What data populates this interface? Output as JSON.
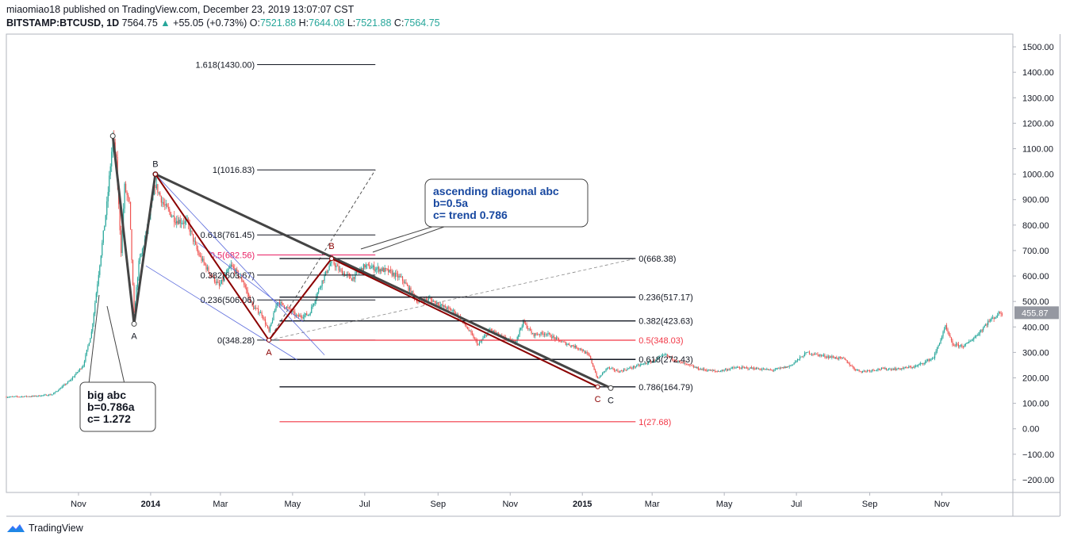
{
  "header": {
    "publisher": "miaomiao18 published on TradingView.com, December 23, 2019 13:07:07 CST",
    "symbol": "BITSTAMP:BTCUSD, 1D",
    "last": "7564.75",
    "arrow": "▲",
    "change": "+55.05 (+0.73%)",
    "o_label": "O:",
    "o": "7521.88",
    "h_label": "H:",
    "h": "7644.08",
    "l_label": "L:",
    "l": "7521.88",
    "c_label": "C:",
    "c": "7564.75"
  },
  "footer": {
    "brand": "TradingView"
  },
  "colors": {
    "up": "#26a69a",
    "down": "#ef5350",
    "wave_red": "#8b0000",
    "trend": "#444444",
    "fib_black": "#131722",
    "fib_red": "#f23645",
    "fib_pink": "#e91e63",
    "channel": "#5b6bdc",
    "price_badge": "#9598a1"
  },
  "chart_data": {
    "type": "candlestick",
    "ylim": [
      -250,
      1550
    ],
    "yticks": [
      "1500.00",
      "1400.00",
      "1300.00",
      "1200.00",
      "1100.00",
      "1000.00",
      "900.00",
      "800.00",
      "700.00",
      "600.00",
      "500.00",
      "400.00",
      "300.00",
      "200.00",
      "100.00",
      "0.00",
      "−100.00",
      "−200.00"
    ],
    "ytick_values": [
      1500,
      1400,
      1300,
      1200,
      1100,
      1000,
      900,
      800,
      700,
      600,
      500,
      400,
      300,
      200,
      100,
      0,
      -100,
      -200
    ],
    "xticks": [
      {
        "label": "Nov",
        "date": "2013-11-01",
        "bold": false
      },
      {
        "label": "2014",
        "date": "2014-01-01",
        "bold": true
      },
      {
        "label": "Mar",
        "date": "2014-03-01",
        "bold": false
      },
      {
        "label": "May",
        "date": "2014-05-01",
        "bold": false
      },
      {
        "label": "Jul",
        "date": "2014-07-01",
        "bold": false
      },
      {
        "label": "Sep",
        "date": "2014-09-01",
        "bold": false
      },
      {
        "label": "Nov",
        "date": "2014-11-01",
        "bold": false
      },
      {
        "label": "2015",
        "date": "2015-01-01",
        "bold": true
      },
      {
        "label": "Mar",
        "date": "2015-03-01",
        "bold": false
      },
      {
        "label": "May",
        "date": "2015-05-01",
        "bold": false
      },
      {
        "label": "Jul",
        "date": "2015-07-01",
        "bold": false
      },
      {
        "label": "Sep",
        "date": "2015-09-01",
        "bold": false
      },
      {
        "label": "Nov",
        "date": "2015-11-01",
        "bold": false
      }
    ],
    "last_price_badge": "455.87",
    "last_price_value": 455.87,
    "price_path": [
      [
        "2013-09-01",
        125
      ],
      [
        "2013-09-25",
        128
      ],
      [
        "2013-10-10",
        135
      ],
      [
        "2013-10-25",
        190
      ],
      [
        "2013-11-05",
        250
      ],
      [
        "2013-11-12",
        380
      ],
      [
        "2013-11-19",
        650
      ],
      [
        "2013-11-25",
        880
      ],
      [
        "2013-11-30",
        1140
      ],
      [
        "2013-12-03",
        1050
      ],
      [
        "2013-12-07",
        700
      ],
      [
        "2013-12-10",
        950
      ],
      [
        "2013-12-14",
        880
      ],
      [
        "2013-12-18",
        450
      ],
      [
        "2013-12-22",
        650
      ],
      [
        "2013-12-27",
        740
      ],
      [
        "2014-01-05",
        960
      ],
      [
        "2014-01-12",
        880
      ],
      [
        "2014-01-22",
        820
      ],
      [
        "2014-02-01",
        810
      ],
      [
        "2014-02-10",
        690
      ],
      [
        "2014-02-20",
        610
      ],
      [
        "2014-02-28",
        560
      ],
      [
        "2014-03-10",
        640
      ],
      [
        "2014-03-20",
        580
      ],
      [
        "2014-03-28",
        480
      ],
      [
        "2014-04-05",
        450
      ],
      [
        "2014-04-11",
        380
      ],
      [
        "2014-04-18",
        500
      ],
      [
        "2014-04-25",
        480
      ],
      [
        "2014-05-05",
        440
      ],
      [
        "2014-05-15",
        450
      ],
      [
        "2014-05-25",
        570
      ],
      [
        "2014-06-03",
        660
      ],
      [
        "2014-06-10",
        620
      ],
      [
        "2014-06-20",
        590
      ],
      [
        "2014-07-01",
        640
      ],
      [
        "2014-07-10",
        630
      ],
      [
        "2014-07-20",
        620
      ],
      [
        "2014-08-01",
        590
      ],
      [
        "2014-08-15",
        500
      ],
      [
        "2014-08-25",
        510
      ],
      [
        "2014-09-05",
        480
      ],
      [
        "2014-09-15",
        460
      ],
      [
        "2014-09-25",
        400
      ],
      [
        "2014-10-05",
        330
      ],
      [
        "2014-10-15",
        390
      ],
      [
        "2014-10-25",
        360
      ],
      [
        "2014-11-05",
        340
      ],
      [
        "2014-11-12",
        420
      ],
      [
        "2014-11-20",
        370
      ],
      [
        "2014-12-01",
        375
      ],
      [
        "2014-12-15",
        340
      ],
      [
        "2014-12-30",
        315
      ],
      [
        "2015-01-07",
        285
      ],
      [
        "2015-01-14",
        195
      ],
      [
        "2015-01-22",
        240
      ],
      [
        "2015-02-01",
        225
      ],
      [
        "2015-02-15",
        245
      ],
      [
        "2015-03-01",
        265
      ],
      [
        "2015-03-12",
        290
      ],
      [
        "2015-03-25",
        260
      ],
      [
        "2015-04-10",
        235
      ],
      [
        "2015-04-25",
        225
      ],
      [
        "2015-05-10",
        240
      ],
      [
        "2015-05-25",
        238
      ],
      [
        "2015-06-10",
        230
      ],
      [
        "2015-06-25",
        245
      ],
      [
        "2015-07-10",
        300
      ],
      [
        "2015-07-25",
        285
      ],
      [
        "2015-08-10",
        275
      ],
      [
        "2015-08-19",
        235
      ],
      [
        "2015-08-25",
        225
      ],
      [
        "2015-09-10",
        235
      ],
      [
        "2015-09-25",
        235
      ],
      [
        "2015-10-10",
        245
      ],
      [
        "2015-10-25",
        280
      ],
      [
        "2015-11-04",
        400
      ],
      [
        "2015-11-10",
        330
      ],
      [
        "2015-11-20",
        325
      ],
      [
        "2015-12-01",
        370
      ],
      [
        "2015-12-10",
        420
      ],
      [
        "2015-12-20",
        455
      ]
    ],
    "annotations": {
      "big_wave": {
        "points": [
          [
            "2013-11-30",
            1150
          ],
          [
            "2013-12-18",
            412
          ],
          [
            "2014-01-05",
            1000
          ],
          [
            "2014-04-11",
            348.28
          ],
          [
            "2015-01-25",
            160
          ]
        ],
        "labels": [
          {
            "text": "B",
            "date": "2014-01-05",
            "value": 1000,
            "pos": "above"
          },
          {
            "text": "A",
            "date": "2013-12-18",
            "value": 412,
            "pos": "below"
          },
          {
            "text": "C",
            "date": "2015-01-25",
            "value": 160,
            "pos": "below"
          }
        ]
      },
      "red_wave": {
        "points": [
          [
            "2014-01-05",
            1000
          ],
          [
            "2014-04-11",
            348.28
          ],
          [
            "2014-06-03",
            668.38
          ],
          [
            "2015-01-14",
            164.79
          ]
        ],
        "labels": [
          {
            "text": "A",
            "date": "2014-04-11",
            "value": 348.28,
            "pos": "below"
          },
          {
            "text": "B",
            "date": "2014-06-03",
            "value": 668.38,
            "pos": "above"
          },
          {
            "text": "C",
            "date": "2015-01-14",
            "value": 164.79,
            "pos": "below"
          }
        ]
      },
      "fib_ext_1": {
        "start": "2014-04-01",
        "end": "2014-07-10",
        "levels": [
          {
            "label": "1.618(1430.00)",
            "value": 1430.0,
            "color": "black"
          },
          {
            "label": "1(1016.83)",
            "value": 1016.83,
            "color": "black"
          },
          {
            "label": "0.618(761.45)",
            "value": 761.45,
            "color": "black"
          },
          {
            "label": "0.5(682.56)",
            "value": 682.56,
            "color": "pink"
          },
          {
            "label": "0.382(603.67)",
            "value": 603.67,
            "color": "black"
          },
          {
            "label": "0.236(506.06)",
            "value": 506.06,
            "color": "black"
          },
          {
            "label": "0(348.28)",
            "value": 348.28,
            "color": "black"
          }
        ]
      },
      "fib_ext_2": {
        "start": "2014-04-20",
        "end": "2015-02-15",
        "levels": [
          {
            "label": "0(668.38)",
            "value": 668.38,
            "color": "black"
          },
          {
            "label": "0.236(517.17)",
            "value": 517.17,
            "color": "black"
          },
          {
            "label": "0.382(423.63)",
            "value": 423.63,
            "color": "black"
          },
          {
            "label": "0.5(348.03)",
            "value": 348.03,
            "color": "red"
          },
          {
            "label": "0.618(272.43)",
            "value": 272.43,
            "color": "black"
          },
          {
            "label": "0.786(164.79)",
            "value": 164.79,
            "color": "black"
          },
          {
            "label": "1(27.68)",
            "value": 27.68,
            "color": "red"
          }
        ]
      },
      "callout_diagonal": [
        "ascending diagonal abc",
        "b=0.5a",
        "c= trend 0.786"
      ],
      "callout_big": [
        "big abc",
        "b=0.786a",
        "c= 1.272"
      ]
    }
  }
}
